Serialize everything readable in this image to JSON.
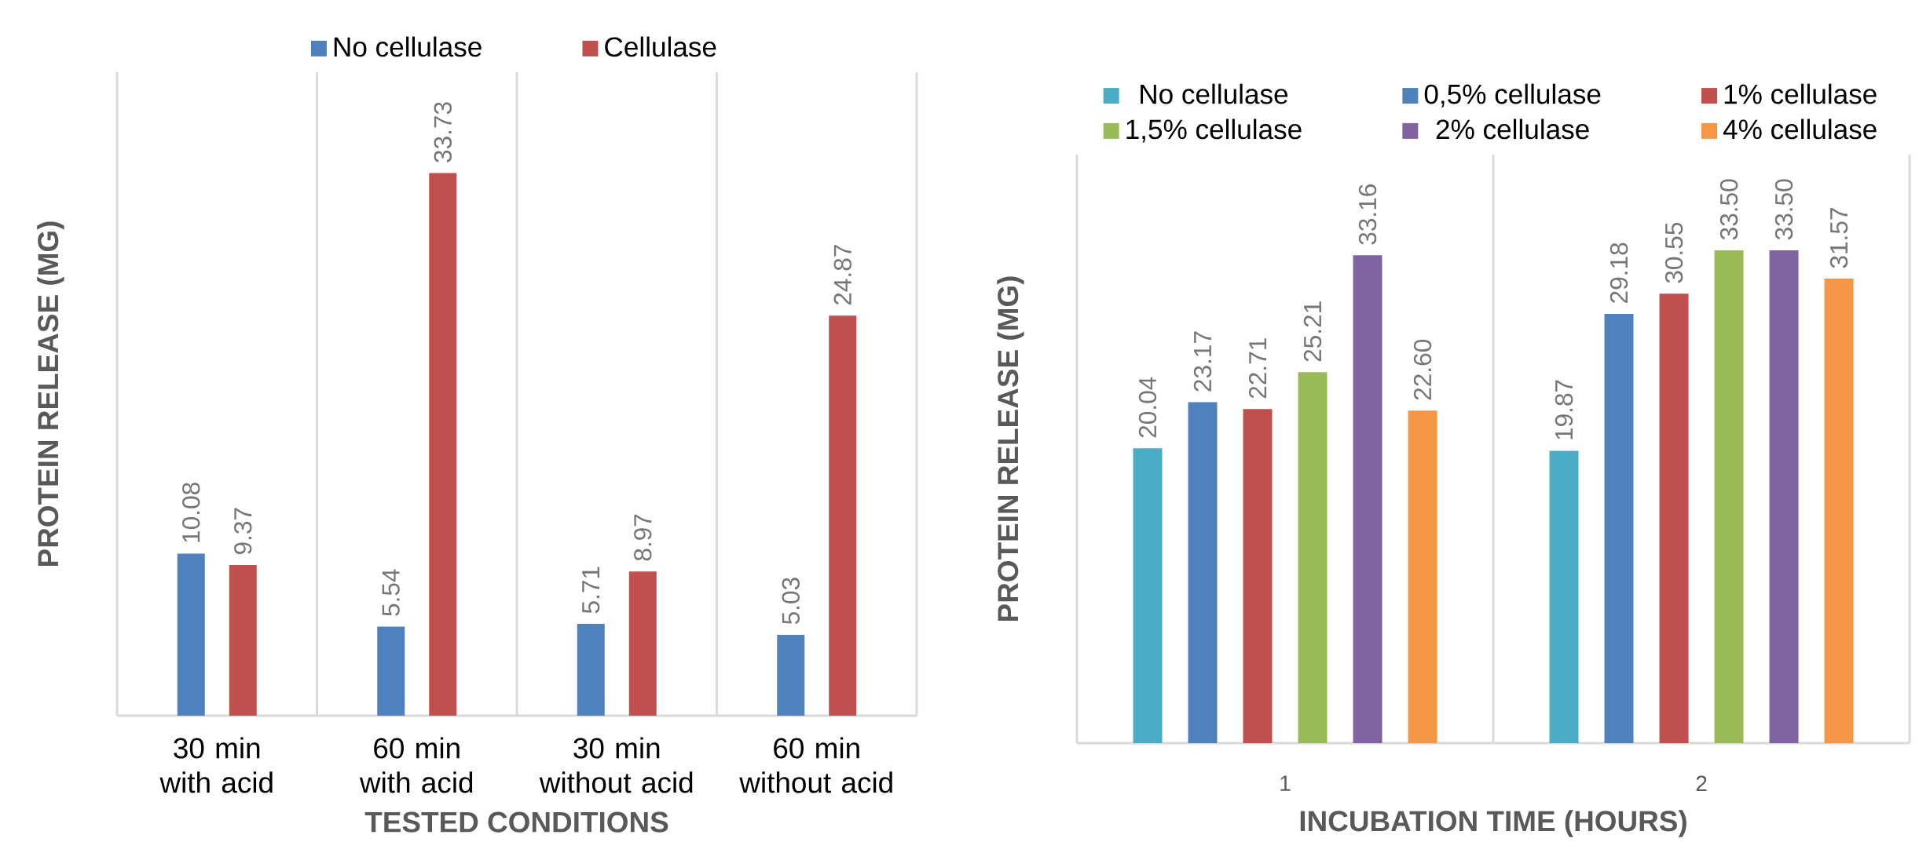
{
  "chart_data": [
    {
      "type": "bar",
      "xlabel": "TESTED CONDITIONS",
      "ylabel": "PROTEIN RELEASE (MG)",
      "categories": [
        "30 min with acid",
        "60 min with acid",
        "30 min without acid",
        "60 min without acid"
      ],
      "series": [
        {
          "name": "No cellulase",
          "color": "#4f81bd",
          "values": [
            10.08,
            5.54,
            5.71,
            5.03
          ]
        },
        {
          "name": "Cellulase",
          "color": "#c0504d",
          "values": [
            9.37,
            33.73,
            8.97,
            24.87
          ]
        }
      ],
      "ylim": [
        0,
        40
      ],
      "data_labels": true,
      "grid": "x",
      "legend": "top",
      "tick_labels": "x"
    },
    {
      "type": "bar",
      "xlabel": "INCUBATION TIME (HOURS)",
      "ylabel": "PROTEIN RELEASE (MG)",
      "categories": [
        "1",
        "2"
      ],
      "series": [
        {
          "name": "No cellulase",
          "color": "#4bacc6",
          "values": [
            20.04,
            19.87
          ],
          "value_labels": [
            "20.04",
            "19.87"
          ]
        },
        {
          "name": "0,5% cellulase",
          "color": "#4f81bd",
          "values": [
            23.17,
            29.18
          ],
          "value_labels": [
            "23.17",
            "29.18"
          ]
        },
        {
          "name": "1% cellulase",
          "color": "#c0504d",
          "values": [
            22.71,
            30.55
          ],
          "value_labels": [
            "22.71",
            "30.55"
          ]
        },
        {
          "name": "1,5% cellulase",
          "color": "#9bbb59",
          "values": [
            25.21,
            33.5
          ],
          "value_labels": [
            "25.21",
            "33.50"
          ]
        },
        {
          "name": "2% cellulase",
          "color": "#8064a2",
          "values": [
            33.16,
            33.5
          ],
          "value_labels": [
            "33.16",
            "33.50"
          ]
        },
        {
          "name": "4% cellulase",
          "color": "#f79646",
          "values": [
            22.6,
            31.57
          ],
          "value_labels": [
            "22.60",
            "31.57"
          ]
        }
      ],
      "ylim": [
        0,
        40
      ],
      "grid": "x",
      "legend": "top",
      "tick_labels": "x"
    }
  ]
}
